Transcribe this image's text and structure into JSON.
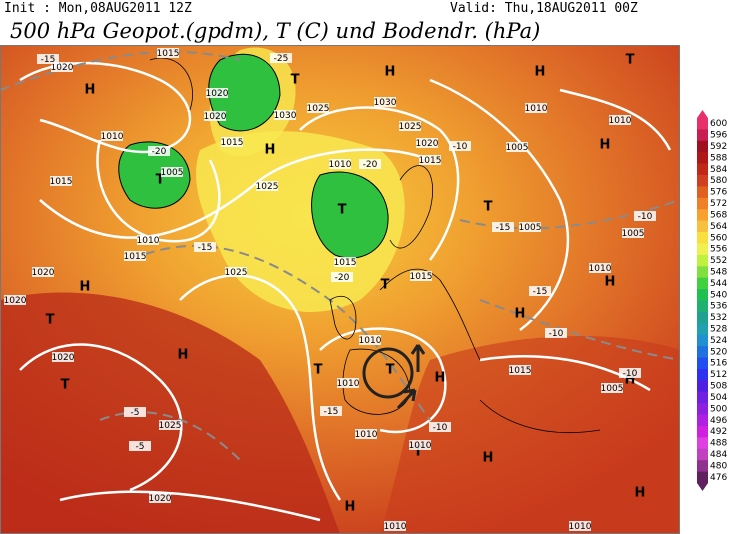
{
  "header": {
    "init": "Init : Mon,08AUG2011 12Z",
    "valid": "Valid: Thu,18AUG2011 00Z",
    "title": "500 hPa Geopot.(gpdm), T (C) und Bodendr. (hPa)"
  },
  "map": {
    "highs": [
      "H",
      "H",
      "H",
      "H",
      "H",
      "H",
      "H",
      "H",
      "H",
      "H",
      "H",
      "H",
      "H",
      "H"
    ],
    "lows": [
      "T",
      "T",
      "T",
      "T",
      "T",
      "T",
      "T",
      "T",
      "T",
      "T",
      "T"
    ],
    "isobars": [
      "1020",
      "1020",
      "1015",
      "1020",
      "1030",
      "1025",
      "1015",
      "1010",
      "1005",
      "1015",
      "1010",
      "1015",
      "1025",
      "1030",
      "1025",
      "1020",
      "1015",
      "1010",
      "1015",
      "1025",
      "1015",
      "1010",
      "1005",
      "1010",
      "1005",
      "1005",
      "1010",
      "1020",
      "1020",
      "1020",
      "1010",
      "1010",
      "1015",
      "1005",
      "1025",
      "1010",
      "1010",
      "1020",
      "1010",
      "1010"
    ],
    "temperatures": [
      "-15",
      "-25",
      "-20",
      "-20",
      "-15",
      "-15",
      "-10",
      "-20",
      "-15",
      "-10",
      "-10",
      "-10",
      "-15",
      "-5",
      "-5",
      "-10"
    ]
  },
  "colorbar": {
    "levels": [
      600,
      596,
      592,
      588,
      584,
      580,
      576,
      572,
      568,
      564,
      560,
      556,
      552,
      548,
      544,
      540,
      536,
      532,
      528,
      524,
      520,
      516,
      512,
      508,
      504,
      500,
      496,
      492,
      488,
      484,
      480,
      476
    ],
    "colors": [
      "#e8306a",
      "#c81e50",
      "#a01020",
      "#b01818",
      "#c02818",
      "#d04020",
      "#e06020",
      "#f08028",
      "#f8a030",
      "#f8c040",
      "#f8e040",
      "#f0f050",
      "#c0f040",
      "#80e040",
      "#40d040",
      "#20c050",
      "#20b070",
      "#20a090",
      "#20a0b0",
      "#2090d0",
      "#2070e0",
      "#2050f0",
      "#3030f0",
      "#5020e0",
      "#7020e0",
      "#9020e0",
      "#b020e0",
      "#d020e0",
      "#e040e0",
      "#c040c0",
      "#903090",
      "#602060"
    ]
  }
}
